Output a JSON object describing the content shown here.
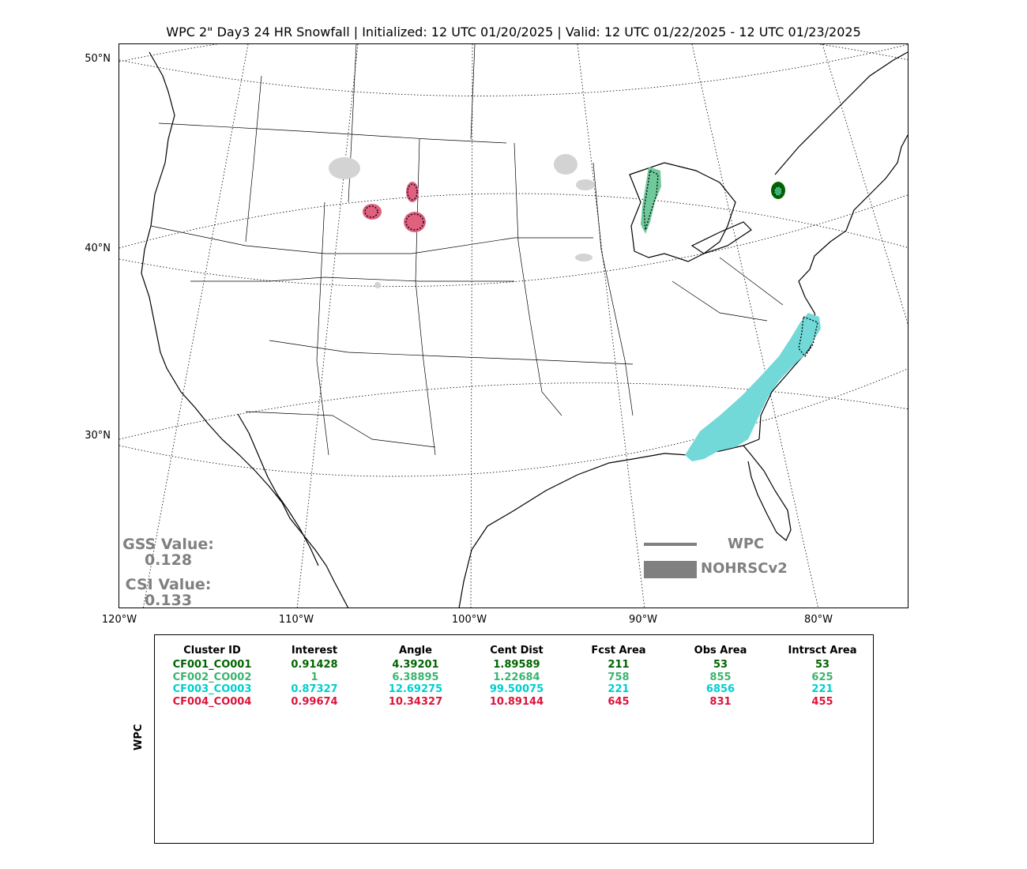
{
  "title": "WPC 2\" Day3 24 HR Snowfall | Initialized: 12 UTC 01/20/2025 | Valid: 12 UTC 01/22/2025 - 12 UTC 01/23/2025",
  "lat_labels": [
    "50°N",
    "40°N",
    "30°N"
  ],
  "lon_labels": [
    "120°W",
    "110°W",
    "100°W",
    "90°W",
    "80°W"
  ],
  "stats": {
    "gss_label": "GSS Value:",
    "gss_value": "0.128",
    "csi_label": "CSI Value:",
    "csi_value": "0.133"
  },
  "legend": {
    "line_label": "WPC",
    "area_label": "NOHRSCv2",
    "color": "#808080"
  },
  "colors": {
    "cluster1": "#006400",
    "cluster2": "#3CB371",
    "cluster3": "#00CED1",
    "cluster4": "#DC143C",
    "unmatched_obs": "#D3D3D3",
    "cluster3_fill": "#72D8D8",
    "cluster2_fill": "#6FC99B",
    "cluster4_fill": "#E06080"
  },
  "table": {
    "side_label": "WPC",
    "headers": [
      "Cluster ID",
      "Interest",
      "Angle",
      "Cent Dist",
      "Fcst Area",
      "Obs Area",
      "Intrsct Area"
    ],
    "rows": [
      {
        "color": "#006400",
        "cells": [
          "CF001_CO001",
          "0.91428",
          "4.39201",
          "1.89589",
          "211",
          "53",
          "53"
        ]
      },
      {
        "color": "#3CB371",
        "cells": [
          "CF002_CO002",
          "1",
          "6.38895",
          "1.22684",
          "758",
          "855",
          "625"
        ]
      },
      {
        "color": "#00CED1",
        "cells": [
          "CF003_CO003",
          "0.87327",
          "12.69275",
          "99.50075",
          "221",
          "6856",
          "221"
        ]
      },
      {
        "color": "#DC143C",
        "cells": [
          "CF004_CO004",
          "0.99674",
          "10.34327",
          "10.89144",
          "645",
          "831",
          "455"
        ]
      }
    ]
  }
}
